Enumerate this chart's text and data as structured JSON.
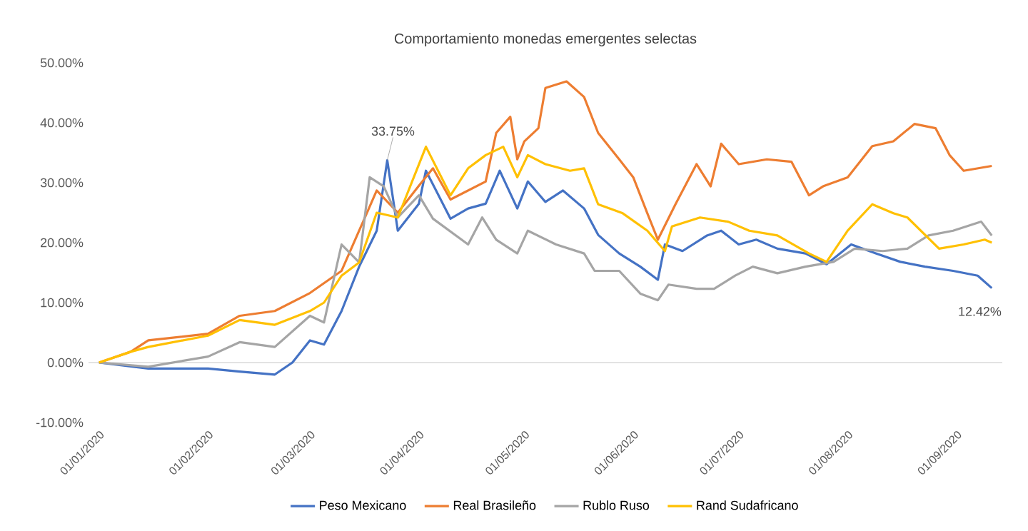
{
  "chart_data": {
    "type": "line",
    "title": "Comportamiento monedas emergentes selectas",
    "xlim": [
      "2019-12-29",
      "2020-09-14"
    ],
    "xticks": [
      {
        "value": "2020-01-01",
        "label": "01/01/2020"
      },
      {
        "value": "2020-02-01",
        "label": "01/02/2020"
      },
      {
        "value": "2020-03-01",
        "label": "01/03/2020"
      },
      {
        "value": "2020-04-01",
        "label": "01/04/2020"
      },
      {
        "value": "2020-05-01",
        "label": "01/05/2020"
      },
      {
        "value": "2020-06-01",
        "label": "01/06/2020"
      },
      {
        "value": "2020-07-01",
        "label": "01/07/2020"
      },
      {
        "value": "2020-08-01",
        "label": "01/08/2020"
      },
      {
        "value": "2020-09-01",
        "label": "01/09/2020"
      }
    ],
    "ylim": [
      -10,
      50
    ],
    "yticks": [
      {
        "value": -10,
        "label": "-10.00%"
      },
      {
        "value": 0,
        "label": "0.00%"
      },
      {
        "value": 10,
        "label": "10.00%"
      },
      {
        "value": 20,
        "label": "20.00%"
      },
      {
        "value": 30,
        "label": "30.00%"
      },
      {
        "value": 40,
        "label": "40.00%"
      },
      {
        "value": 50,
        "label": "50.00%"
      }
    ],
    "grid": false,
    "legend": "bottom",
    "ref_lines": [
      {
        "axis": "y",
        "value": 0,
        "color": "#d9d9d9"
      }
    ],
    "marker": "none",
    "line_style": "solid",
    "annotations": [
      {
        "text": "33.75%",
        "x": "2020-03-23",
        "y": 33.75
      },
      {
        "text": "12.42%",
        "x": "2020-09-11",
        "y": 12.42
      }
    ],
    "series": [
      {
        "name": "Peso Mexicano",
        "color": "#4472c4",
        "x": [
          "2020-01-01",
          "2020-01-15",
          "2020-02-01",
          "2020-02-10",
          "2020-02-20",
          "2020-02-25",
          "2020-03-01",
          "2020-03-05",
          "2020-03-10",
          "2020-03-15",
          "2020-03-20",
          "2020-03-23",
          "2020-03-26",
          "2020-04-01",
          "2020-04-03",
          "2020-04-10",
          "2020-04-15",
          "2020-04-20",
          "2020-04-24",
          "2020-04-29",
          "2020-05-02",
          "2020-05-07",
          "2020-05-12",
          "2020-05-18",
          "2020-05-22",
          "2020-05-28",
          "2020-06-03",
          "2020-06-08",
          "2020-06-10",
          "2020-06-15",
          "2020-06-22",
          "2020-06-26",
          "2020-07-01",
          "2020-07-06",
          "2020-07-12",
          "2020-07-20",
          "2020-07-26",
          "2020-08-02",
          "2020-08-09",
          "2020-08-16",
          "2020-08-23",
          "2020-08-31",
          "2020-09-07",
          "2020-09-11"
        ],
        "values": [
          0,
          -1,
          -1,
          -1.5,
          -2,
          0,
          3.7,
          3,
          8.6,
          16,
          22,
          33.75,
          22,
          26.5,
          32,
          24,
          25.7,
          26.5,
          32,
          25.7,
          30.2,
          26.8,
          28.7,
          25.7,
          21.3,
          18.2,
          16,
          13.8,
          19.7,
          18.6,
          21.2,
          22,
          19.7,
          20.5,
          19,
          18.2,
          16.4,
          19.7,
          18.2,
          16.8,
          16,
          15.3,
          14.5,
          12.42
        ]
      },
      {
        "name": "Real Brasileño",
        "color": "#ed7d31",
        "x": [
          "2020-01-01",
          "2020-01-10",
          "2020-01-15",
          "2020-02-01",
          "2020-02-10",
          "2020-02-20",
          "2020-03-01",
          "2020-03-10",
          "2020-03-15",
          "2020-03-20",
          "2020-03-26",
          "2020-04-01",
          "2020-04-05",
          "2020-04-10",
          "2020-04-20",
          "2020-04-23",
          "2020-04-27",
          "2020-04-29",
          "2020-05-01",
          "2020-05-05",
          "2020-05-07",
          "2020-05-13",
          "2020-05-18",
          "2020-05-22",
          "2020-05-28",
          "2020-06-01",
          "2020-06-05",
          "2020-06-08",
          "2020-06-13",
          "2020-06-19",
          "2020-06-23",
          "2020-06-26",
          "2020-07-01",
          "2020-07-09",
          "2020-07-16",
          "2020-07-21",
          "2020-07-25",
          "2020-08-01",
          "2020-08-08",
          "2020-08-14",
          "2020-08-20",
          "2020-08-26",
          "2020-08-30",
          "2020-09-03",
          "2020-09-11"
        ],
        "values": [
          0,
          1.8,
          3.7,
          4.8,
          7.8,
          8.6,
          11.6,
          15.3,
          22,
          28.7,
          25,
          29.5,
          32.4,
          27.2,
          30.2,
          38.3,
          41,
          33.9,
          36.9,
          39.1,
          45.8,
          46.9,
          44.3,
          38.3,
          33.9,
          30.9,
          24.9,
          20.5,
          26.4,
          33.1,
          29.4,
          36.5,
          33.1,
          33.9,
          33.5,
          27.9,
          29.4,
          30.9,
          36.1,
          36.9,
          39.8,
          39.1,
          34.6,
          32,
          32.8
        ]
      },
      {
        "name": "Rublo Ruso",
        "color": "#a5a5a5",
        "x": [
          "2020-01-01",
          "2020-01-15",
          "2020-02-01",
          "2020-02-10",
          "2020-02-20",
          "2020-03-01",
          "2020-03-05",
          "2020-03-10",
          "2020-03-15",
          "2020-03-18",
          "2020-03-22",
          "2020-03-26",
          "2020-04-01",
          "2020-04-05",
          "2020-04-15",
          "2020-04-19",
          "2020-04-23",
          "2020-04-29",
          "2020-05-02",
          "2020-05-10",
          "2020-05-18",
          "2020-05-21",
          "2020-05-28",
          "2020-06-03",
          "2020-06-08",
          "2020-06-11",
          "2020-06-19",
          "2020-06-24",
          "2020-06-30",
          "2020-07-05",
          "2020-07-12",
          "2020-07-20",
          "2020-07-28",
          "2020-08-03",
          "2020-08-11",
          "2020-08-18",
          "2020-08-24",
          "2020-08-31",
          "2020-09-08",
          "2020-09-11"
        ],
        "values": [
          0,
          -0.7,
          1,
          3.4,
          2.6,
          7.8,
          6.7,
          19.7,
          16.7,
          30.9,
          29.4,
          24.2,
          27.9,
          24,
          19.7,
          24.2,
          20.5,
          18.2,
          22,
          19.7,
          18.2,
          15.3,
          15.3,
          11.5,
          10.4,
          13,
          12.3,
          12.3,
          14.5,
          16,
          14.9,
          16,
          16.8,
          19,
          18.6,
          19,
          21.2,
          22,
          23.5,
          21.2
        ]
      },
      {
        "name": "Rand Sudafricano",
        "color": "#ffc000",
        "x": [
          "2020-01-01",
          "2020-01-10",
          "2020-01-15",
          "2020-02-01",
          "2020-02-10",
          "2020-02-20",
          "2020-03-01",
          "2020-03-05",
          "2020-03-10",
          "2020-03-15",
          "2020-03-20",
          "2020-03-26",
          "2020-04-03",
          "2020-04-10",
          "2020-04-15",
          "2020-04-20",
          "2020-04-25",
          "2020-04-29",
          "2020-05-02",
          "2020-05-07",
          "2020-05-14",
          "2020-05-18",
          "2020-05-22",
          "2020-05-29",
          "2020-06-05",
          "2020-06-10",
          "2020-06-12",
          "2020-06-20",
          "2020-06-28",
          "2020-07-04",
          "2020-07-12",
          "2020-07-21",
          "2020-07-26",
          "2020-08-01",
          "2020-08-08",
          "2020-08-14",
          "2020-08-18",
          "2020-08-27",
          "2020-09-03",
          "2020-09-09",
          "2020-09-11"
        ],
        "values": [
          0,
          1.8,
          2.6,
          4.5,
          7.1,
          6.3,
          8.6,
          10,
          14.5,
          16.7,
          25,
          24.2,
          36,
          27.9,
          32.4,
          34.6,
          36,
          30.9,
          34.6,
          33.1,
          32,
          32.4,
          26.4,
          24.9,
          22,
          18.6,
          22.7,
          24.2,
          23.5,
          22,
          21.2,
          18.2,
          16.8,
          22,
          26.4,
          24.9,
          24.2,
          19,
          19.7,
          20.5,
          20
        ]
      }
    ]
  }
}
